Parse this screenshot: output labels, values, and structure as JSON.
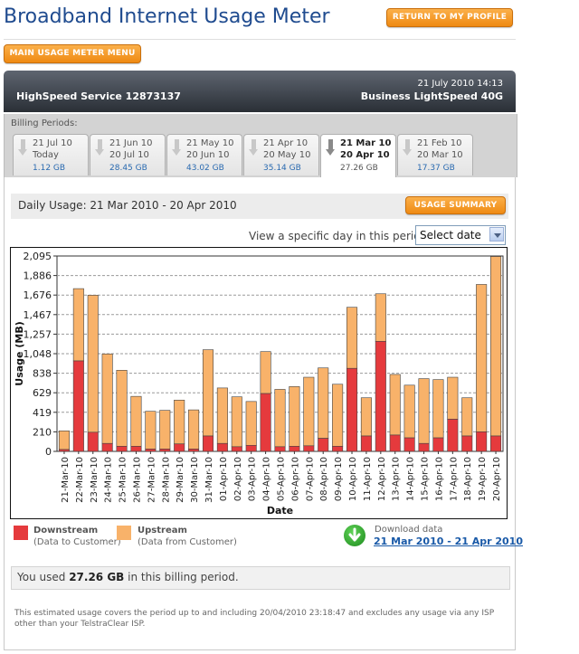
{
  "page_title": "Broadband Internet Usage Meter",
  "return_button": "RETURN TO MY PROFILE",
  "menu_button": "MAIN USAGE METER MENU",
  "header": {
    "datetime": "21 July 2010 14:13",
    "service": "HighSpeed Service 12873137",
    "plan": "Business LightSpeed 40G"
  },
  "billing": {
    "label": "Billing Periods:",
    "tabs": [
      {
        "line1": "21 Jul 10",
        "line2": "Today",
        "usage": "1.12 GB"
      },
      {
        "line1": "21 Jun 10",
        "line2": "20 Jul 10",
        "usage": "28.45 GB"
      },
      {
        "line1": "21 May 10",
        "line2": "20 Jun 10",
        "usage": "43.02 GB"
      },
      {
        "line1": "21 Apr 10",
        "line2": "20 May 10",
        "usage": "35.14 GB"
      },
      {
        "line1": "21 Mar 10",
        "line2": "20 Apr 10",
        "usage": "27.26 GB"
      },
      {
        "line1": "21 Feb 10",
        "line2": "20 Mar 10",
        "usage": "17.37 GB"
      }
    ]
  },
  "daily": {
    "title": "Daily Usage: 21 Mar 2010 - 20 Apr 2010",
    "summary_button": "USAGE SUMMARY",
    "view_label": "View a specific day in this period:",
    "select_value": "Select date"
  },
  "colors": {
    "downstream": "#e53a3d",
    "upstream": "#f8b26a",
    "outline": "#444444"
  },
  "chart_data": {
    "type": "bar",
    "stacked": true,
    "xlabel": "Date",
    "ylabel": "Usage (MB)",
    "ylim": [
      0,
      2095
    ],
    "y_ticks": [
      "0",
      "210",
      "419",
      "629",
      "838",
      "1,048",
      "1,257",
      "1,467",
      "1,676",
      "1,886",
      "2,095"
    ],
    "grid": true,
    "categories": [
      "21-Mar-10",
      "22-Mar-10",
      "23-Mar-10",
      "24-Mar-10",
      "25-Mar-10",
      "26-Mar-10",
      "27-Mar-10",
      "28-Mar-10",
      "29-Mar-10",
      "30-Mar-10",
      "31-Mar-10",
      "01-Apr-10",
      "02-Apr-10",
      "03-Apr-10",
      "04-Apr-10",
      "05-Apr-10",
      "06-Apr-10",
      "07-Apr-10",
      "08-Apr-10",
      "09-Apr-10",
      "10-Apr-10",
      "11-Apr-10",
      "12-Apr-10",
      "13-Apr-10",
      "14-Apr-10",
      "15-Apr-10",
      "16-Apr-10",
      "17-Apr-10",
      "18-Apr-10",
      "19-Apr-10",
      "20-Apr-10"
    ],
    "series": [
      {
        "name": "Downstream",
        "values": [
          20,
          970,
          205,
          85,
          55,
          55,
          25,
          25,
          80,
          25,
          165,
          85,
          50,
          65,
          620,
          50,
          55,
          60,
          140,
          55,
          890,
          165,
          1180,
          175,
          145,
          85,
          145,
          345,
          165,
          210,
          165
        ]
      },
      {
        "name": "Upstream",
        "values": [
          200,
          775,
          1470,
          960,
          815,
          535,
          405,
          415,
          470,
          420,
          925,
          595,
          535,
          470,
          450,
          615,
          640,
          735,
          755,
          665,
          655,
          410,
          510,
          650,
          565,
          695,
          625,
          450,
          410,
          1580,
          1925
        ]
      }
    ]
  },
  "legend": {
    "down_title": "Downstream",
    "down_sub": "(Data to Customer)",
    "up_title": "Upstream",
    "up_sub": "(Data from Customer)"
  },
  "download": {
    "label": "Download data",
    "link": "21 Mar 2010 - 21 Apr 2010"
  },
  "usage": {
    "prefix": "You used",
    "amount": "27.26 GB",
    "suffix": "in this billing period."
  },
  "footnote": "This estimated usage covers the period up to and including 20/04/2010 23:18:47 and excludes any usage via any ISP other than your TelstraClear ISP."
}
